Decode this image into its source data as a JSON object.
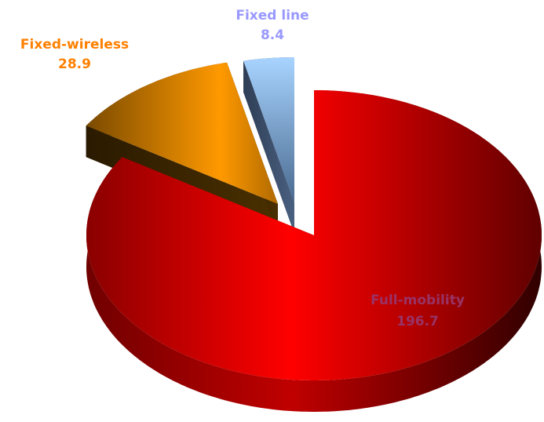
{
  "chart_data": {
    "type": "pie",
    "categories": [
      "Full-mobility",
      "Fixed-wireless",
      "Fixed line"
    ],
    "values": [
      196.7,
      28.9,
      8.4
    ],
    "colors": [
      "#ff0000",
      "#ff9900",
      "#99ccff"
    ],
    "label_colors": [
      "#993366",
      "#ff8000",
      "#9999ff"
    ]
  }
}
